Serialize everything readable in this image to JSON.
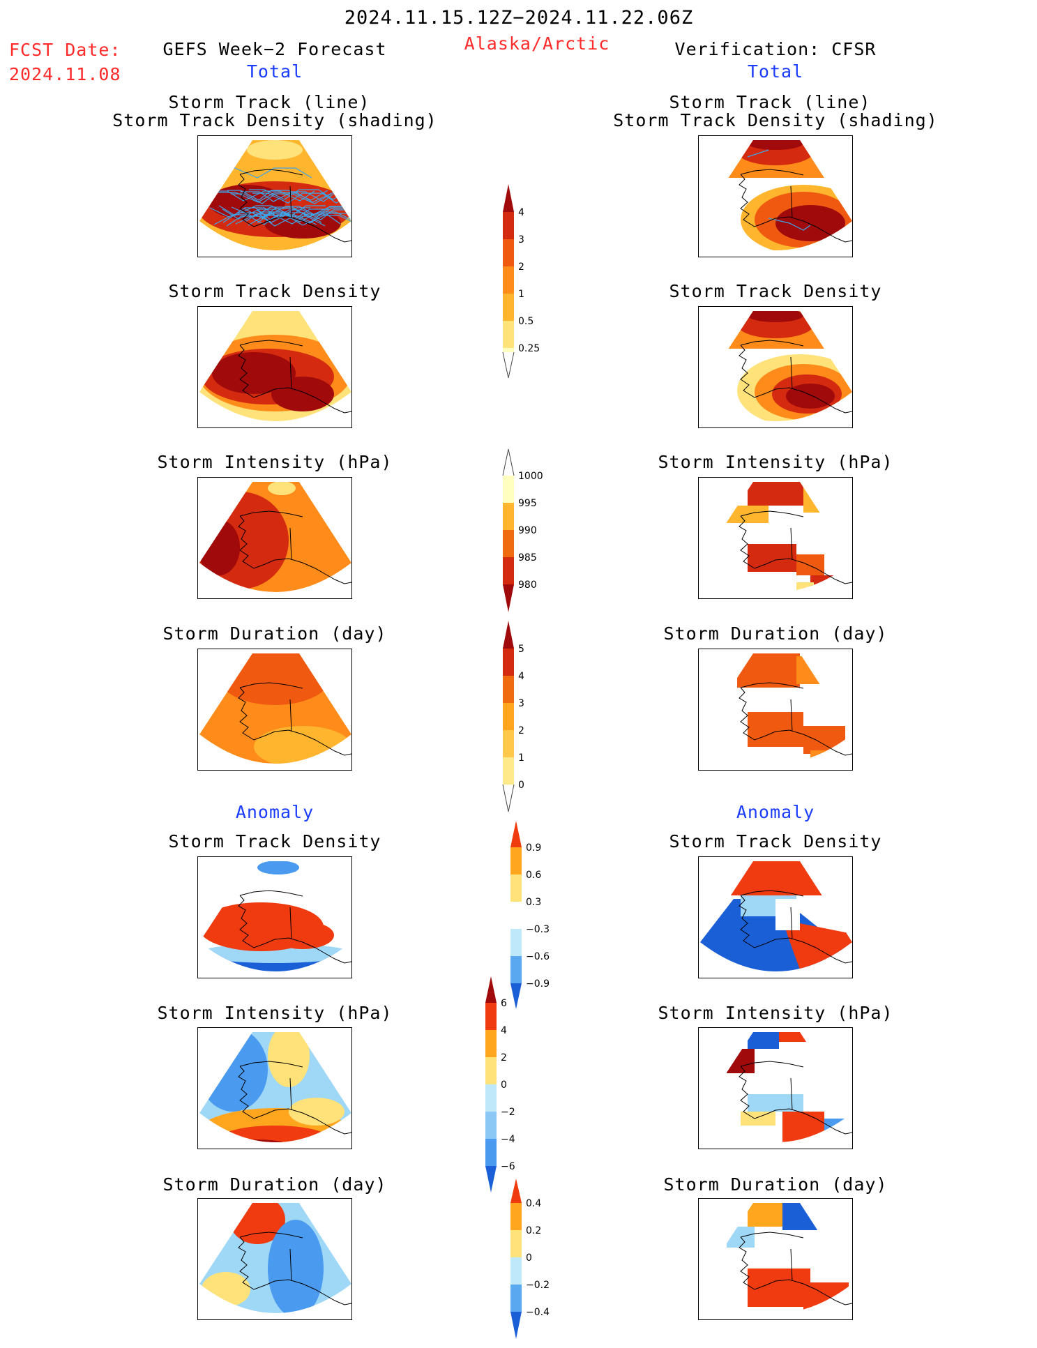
{
  "header": {
    "date_range": "2024.11.15.12Z−2024.11.22.06Z",
    "fcst_label": "FCST Date:",
    "fcst_date": "2024.11.08",
    "left_title": "GEFS Week−2 Forecast",
    "region": "Alaska/Arctic",
    "right_title": "Verification: CFSR",
    "total_label": "Total",
    "anomaly_label": "Anomaly"
  },
  "rows": [
    {
      "title_line1": "Storm Track (line)",
      "title_line2": "Storm Track Density (shading)"
    },
    {
      "title_line1": "Storm Track Density"
    },
    {
      "title_line1": "Storm Intensity (hPa)"
    },
    {
      "title_line1": "Storm Duration (day)"
    },
    {
      "title_line1": "Storm Track Density"
    },
    {
      "title_line1": "Storm Intensity (hPa)"
    },
    {
      "title_line1": "Storm Duration (day)"
    }
  ],
  "colorbars": {
    "density": [
      "4",
      "3",
      "2",
      "1",
      "0.5",
      "0.25"
    ],
    "intensity": [
      "1000",
      "995",
      "990",
      "985",
      "980"
    ],
    "duration": [
      "5",
      "4",
      "3",
      "2",
      "1",
      "0"
    ],
    "density_anom": [
      "0.9",
      "0.6",
      "0.3",
      "−0.3",
      "−0.6",
      "−0.9"
    ],
    "intensity_anom": [
      "6",
      "4",
      "2",
      "0",
      "−2",
      "−4",
      "−6"
    ],
    "duration_anom": [
      "0.4",
      "0.2",
      "0",
      "−0.2",
      "−0.4"
    ]
  },
  "colors": {
    "warm": [
      "#ffffc0",
      "#ffe27a",
      "#ffb52e",
      "#ff8c1a",
      "#f05a10",
      "#d42a10",
      "#a00a0a"
    ],
    "diverging": [
      "#1a5fd6",
      "#4a9bef",
      "#9fd7f7",
      "#ffffff",
      "#ffe27a",
      "#ffa51e",
      "#f03a10",
      "#a00a0a"
    ],
    "track_line": "#3da5e8"
  }
}
